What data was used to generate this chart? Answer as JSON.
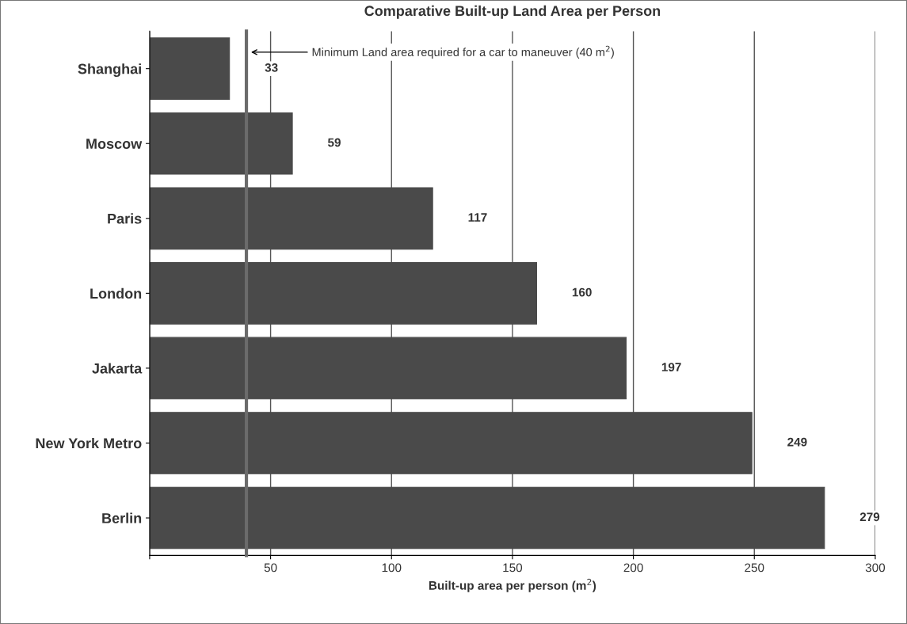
{
  "chart_data": {
    "type": "bar",
    "orientation": "horizontal",
    "title": "Comparative Built-up Land Area per Person",
    "xlabel": "Built-up area per person (m$^{2}$)",
    "categories": [
      "Shanghai",
      "Moscow",
      "Paris",
      "London",
      "Jakarta",
      "New York Metro",
      "Berlin"
    ],
    "values": [
      33,
      59,
      117,
      160,
      197,
      249,
      279
    ],
    "color": "#4a4a4a",
    "data_labels": true,
    "xlim": [
      0,
      300
    ],
    "xticks": [
      {
        "value": 0,
        "label": null
      },
      50,
      100,
      150,
      200,
      250,
      300
    ],
    "grid": "x",
    "ref_lines": [
      {
        "axis": "x",
        "value": 40,
        "label": "Minimum Land area required for a car to maneuver (40 m$^{2}$)",
        "color": "#6b6b6b",
        "line_style": "solid"
      }
    ]
  }
}
